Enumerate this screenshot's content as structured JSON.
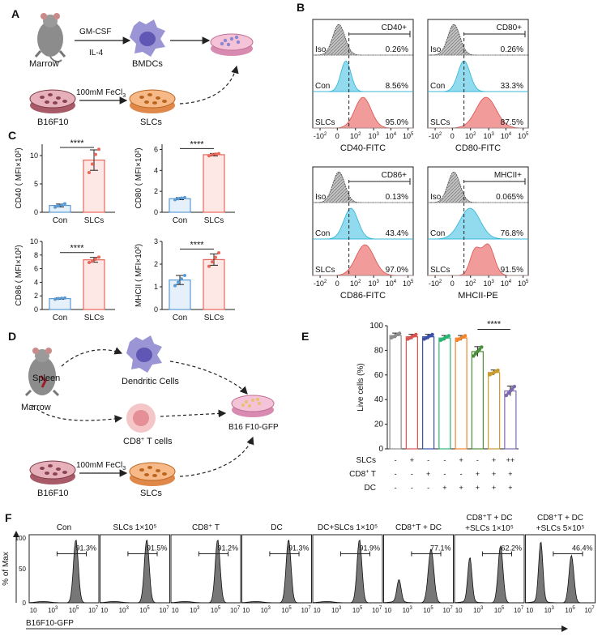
{
  "panels": {
    "A": {
      "label": "A",
      "marrow": "Marrow",
      "gmcsf": "GM-CSF",
      "il4": "IL-4",
      "bmdcs": "BMDCs",
      "fecl3": "100mM FeCl",
      "fecl3_sub": "3",
      "b16f10": "B16F10",
      "slcs": "SLCs"
    },
    "B": {
      "label": "B",
      "rows": [
        "Iso",
        "Con",
        "SLCs"
      ],
      "plots": [
        {
          "gate": "CD40+",
          "xlabel": "CD40-FITC",
          "pcts": [
            "0.26%",
            "8.56%",
            "95.0%"
          ]
        },
        {
          "gate": "CD80+",
          "xlabel": "CD80-FITC",
          "pcts": [
            "0.26%",
            "33.3%",
            "87.5%"
          ]
        },
        {
          "gate": "CD86+",
          "xlabel": "CD86-FITC",
          "pcts": [
            "0.13%",
            "43.4%",
            "97.0%"
          ]
        },
        {
          "gate": "MHCII+",
          "xlabel": "MHCII-PE",
          "pcts": [
            "0.065%",
            "76.8%",
            "91.5%"
          ]
        }
      ],
      "ticks": [
        "-10",
        "0",
        "10",
        "10",
        "10",
        "10"
      ],
      "tick_exp": [
        "2",
        "",
        "2",
        "3",
        "4",
        "5"
      ]
    },
    "C": {
      "label": "C",
      "categories": [
        "Con",
        "SLCs"
      ],
      "significance": "****",
      "colors": {
        "con": "#5b9bd5",
        "slcs": "#e8675a"
      }
    },
    "D": {
      "label": "D",
      "spleen": "Spleen",
      "marrow": "Marrow",
      "dc": "Dendritic Cells",
      "cd8": "CD8",
      "cd8_sup": "+",
      "cd8_rest": " T cells",
      "target": "B16 F10-GFP",
      "fecl3": "100mM FeCl",
      "fecl3_sub": "3",
      "b16f10": "B16F10",
      "slcs": "SLCs"
    },
    "E": {
      "label": "E",
      "significance": "****",
      "row_labels": [
        "SLCs",
        "CD8",
        "DC"
      ],
      "cd8_sup": "+",
      "cd8_rest": " T",
      "matrix": [
        [
          "-",
          "+",
          "-",
          "-",
          "+",
          "-",
          "+",
          "++"
        ],
        [
          "-",
          "-",
          "+",
          "-",
          "-",
          "+",
          "+",
          "+"
        ],
        [
          "-",
          "-",
          "-",
          "+",
          "+",
          "+",
          "+",
          "+"
        ]
      ]
    },
    "F": {
      "label": "F",
      "ylabel": "% of Max",
      "xlabel": "B16F10-GFP",
      "y_ticks": [
        "0",
        "50",
        "100"
      ],
      "x_ticks": [
        "10",
        "10",
        "10",
        "10"
      ],
      "x_tick_exp": [
        "",
        "3",
        "5",
        "7"
      ],
      "plots": [
        {
          "title": "Con",
          "title2": "",
          "pct": "91.3%"
        },
        {
          "title": "SLCs 1×10⁵",
          "title2": "",
          "pct": "91.5%"
        },
        {
          "title": "CD8⁺ T",
          "title2": "",
          "pct": "91.2%"
        },
        {
          "title": "DC",
          "title2": "",
          "pct": "91.3%"
        },
        {
          "title": "DC+SLCs 1×10⁵",
          "title2": "",
          "pct": "91.9%"
        },
        {
          "title": "CD8⁺T + DC",
          "title2": "",
          "pct": "77.1%"
        },
        {
          "title": "CD8⁺T + DC",
          "title2": "+SLCs 1×10⁵",
          "pct": "62.2%"
        },
        {
          "title": "CD8⁺T + DC",
          "title2": "+SLCs 5×10⁵",
          "pct": "46.4%"
        }
      ]
    }
  },
  "chart_data": [
    {
      "type": "bar",
      "panel": "C",
      "title": "",
      "categories": [
        "Con",
        "SLCs"
      ],
      "values": [
        1.2,
        9.2
      ],
      "ylabel": "CD40 ( MFI×10²)",
      "ylim": [
        0,
        12
      ],
      "yticks": [
        0,
        5,
        10
      ],
      "points": [
        [
          0.9,
          1.1,
          1.3,
          1.5
        ],
        [
          7.0,
          8.5,
          10.2,
          11.1
        ]
      ],
      "errors": [
        0.25,
        1.8
      ],
      "significance": "****"
    },
    {
      "type": "bar",
      "panel": "C",
      "title": "",
      "categories": [
        "Con",
        "SLCs"
      ],
      "values": [
        1.3,
        5.5
      ],
      "ylabel": "CD80 ( MFI×10²)",
      "ylim": [
        0,
        6.5
      ],
      "yticks": [
        0,
        2,
        4,
        6
      ],
      "points": [
        [
          1.2,
          1.3,
          1.35,
          1.4
        ],
        [
          5.4,
          5.5,
          5.55,
          5.6
        ]
      ],
      "errors": [
        0.1,
        0.12
      ],
      "significance": "****"
    },
    {
      "type": "bar",
      "panel": "C",
      "title": "",
      "categories": [
        "Con",
        "SLCs"
      ],
      "values": [
        1.6,
        7.3
      ],
      "ylabel": "CD86 ( MFI×10²)",
      "ylim": [
        0,
        10
      ],
      "yticks": [
        0,
        2,
        4,
        6,
        8,
        10
      ],
      "points": [
        [
          1.5,
          1.6,
          1.65,
          1.7
        ],
        [
          6.9,
          7.1,
          7.4,
          7.7
        ]
      ],
      "errors": [
        0.1,
        0.35
      ],
      "significance": "****"
    },
    {
      "type": "bar",
      "panel": "C",
      "title": "",
      "categories": [
        "Con",
        "SLCs"
      ],
      "values": [
        1.3,
        2.2
      ],
      "ylabel": "MHCII ( MFI×10²)",
      "ylim": [
        0,
        3
      ],
      "yticks": [
        0,
        1,
        2,
        3
      ],
      "points": [
        [
          1.05,
          1.2,
          1.35,
          1.5
        ],
        [
          1.9,
          2.1,
          2.3,
          2.5
        ]
      ],
      "errors": [
        0.2,
        0.25
      ],
      "significance": "****"
    },
    {
      "type": "bar",
      "panel": "E",
      "title": "",
      "categories": [
        "G1",
        "G2",
        "G3",
        "G4",
        "G5",
        "G6",
        "G7",
        "G8"
      ],
      "values": [
        92,
        91,
        91,
        90,
        90,
        79,
        62,
        47
      ],
      "errors": [
        2,
        2,
        2,
        2,
        2,
        4,
        2,
        4
      ],
      "ylabel": "Live cells  (%)",
      "ylim": [
        0,
        100
      ],
      "yticks": [
        0,
        20,
        40,
        60,
        80,
        100
      ],
      "colors": [
        "#8c8c8c",
        "#d9534f",
        "#3a4fa8",
        "#2bb673",
        "#f0842c",
        "#4a8f39",
        "#c99a2e",
        "#7d6bb0"
      ],
      "significance": "****"
    }
  ]
}
